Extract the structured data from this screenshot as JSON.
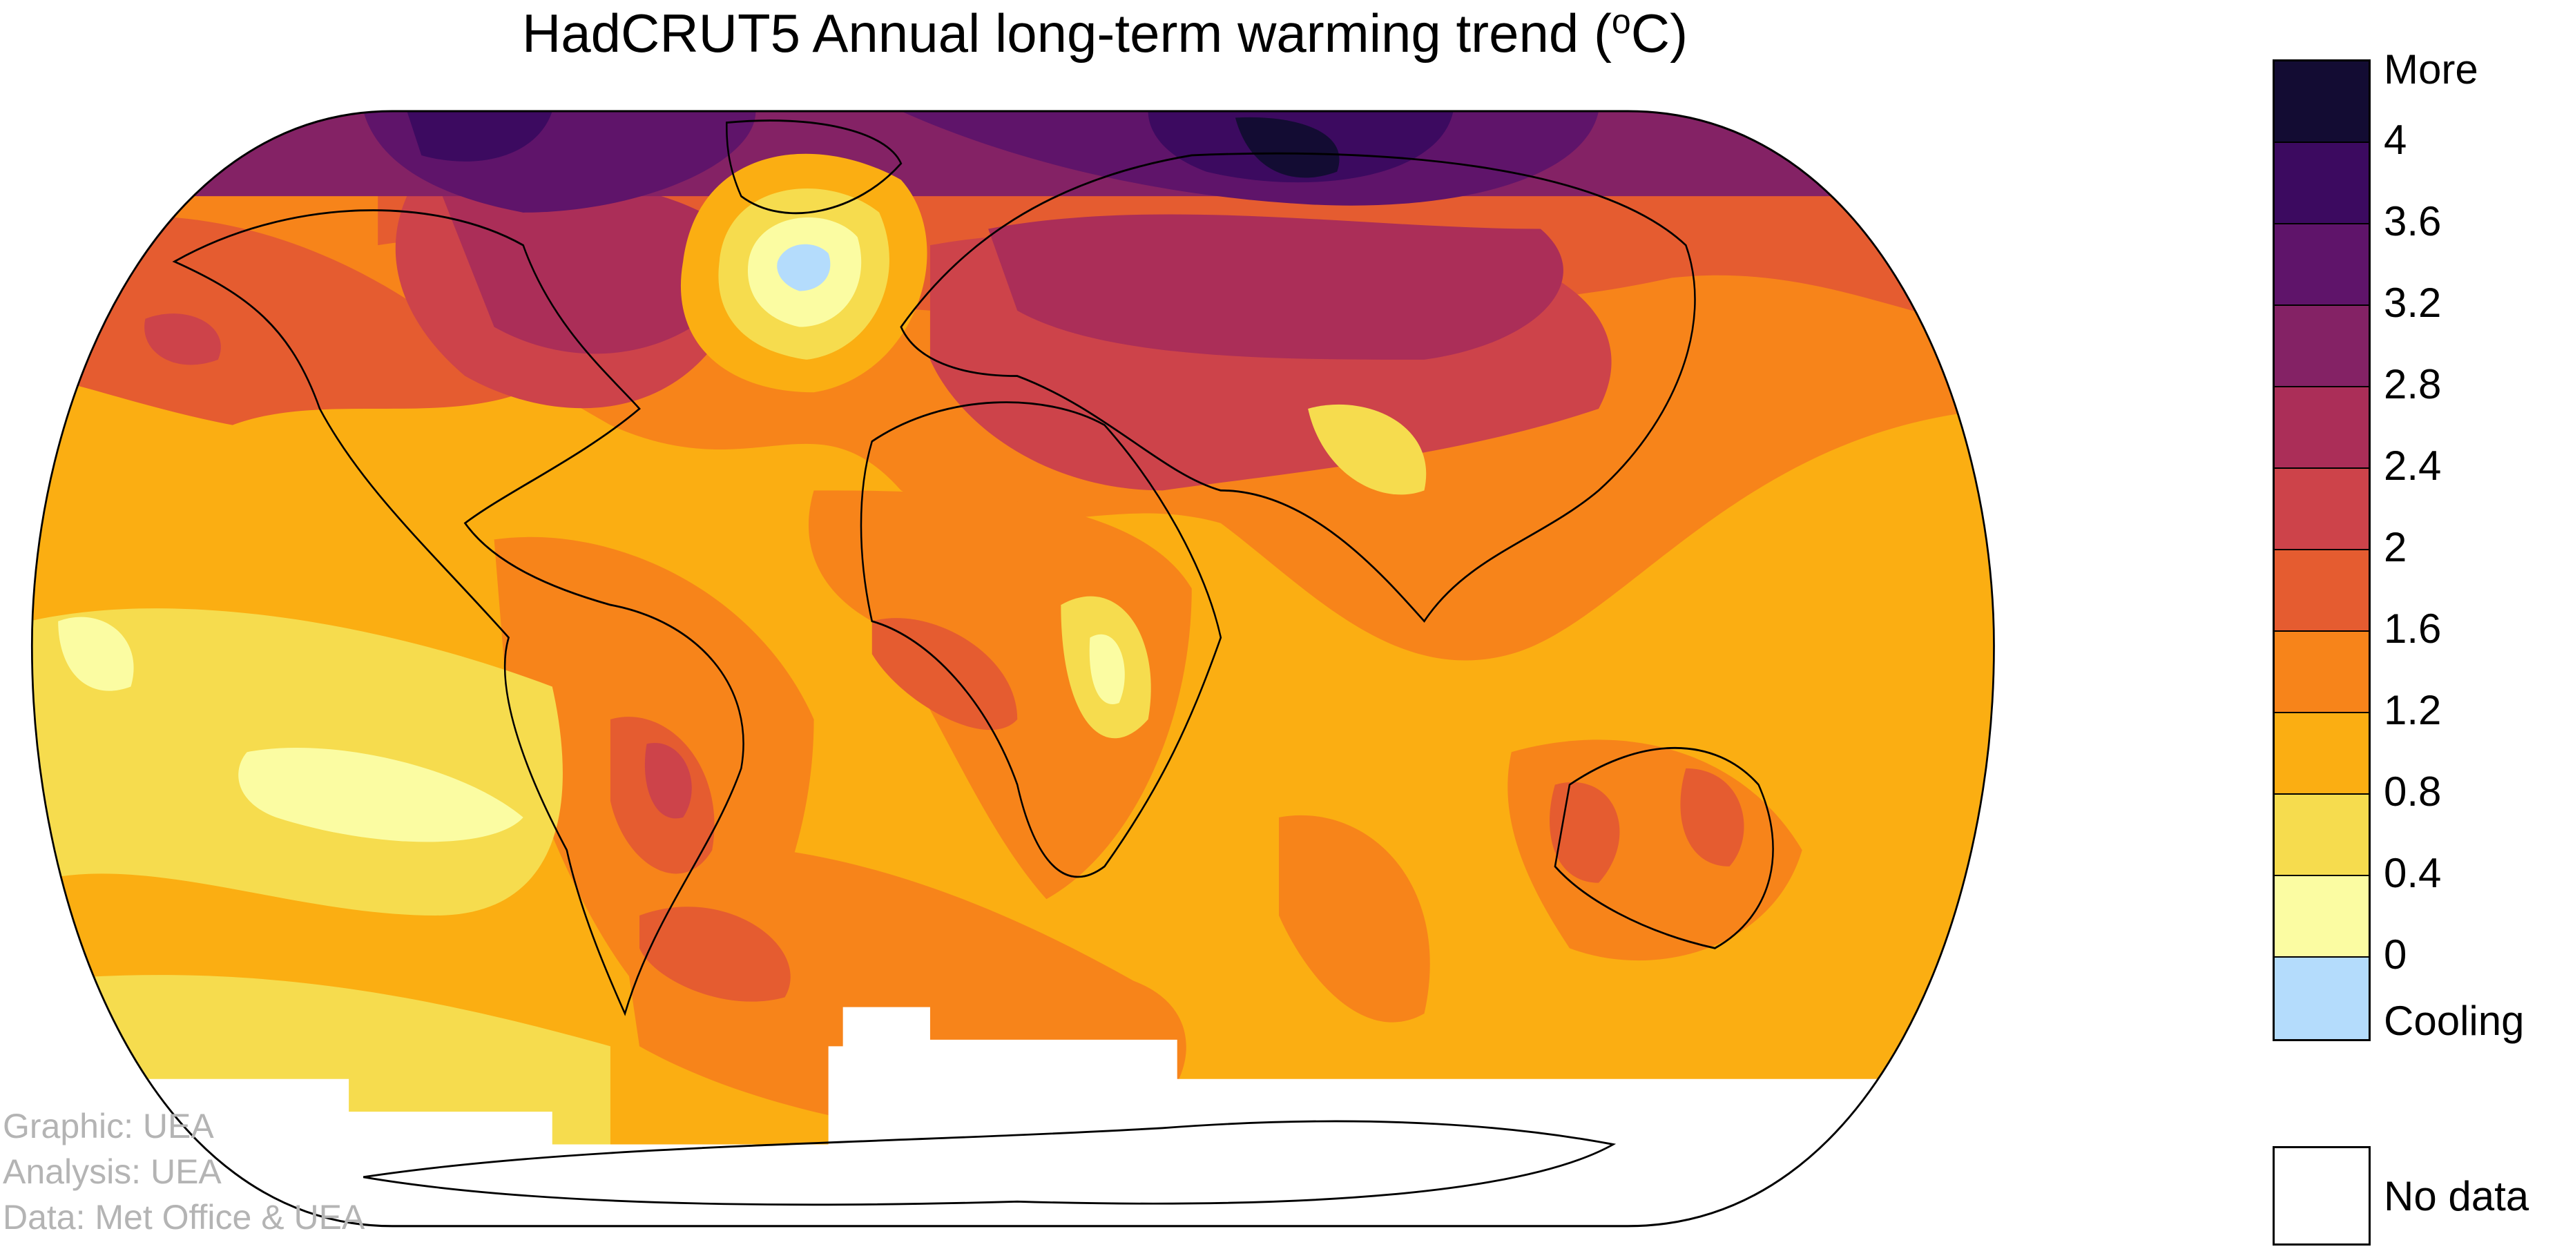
{
  "title": "HadCRUT5 Annual long-term warming trend (",
  "title_unit_sup": "o",
  "title_unit": "C)",
  "credits": [
    "Graphic: UEA",
    "Analysis: UEA",
    "Data: Met Office & UEA"
  ],
  "chart_data": {
    "type": "heatmap",
    "projection": "world map (Robinson-like)",
    "variable": "Annual long-term warming trend",
    "unit": "°C",
    "legend": {
      "placement": "right",
      "top_label": "More",
      "bottom_label": "Cooling",
      "tick_labels": [
        "4",
        "3.6",
        "3.2",
        "2.8",
        "2.4",
        "2",
        "1.6",
        "1.2",
        "0.8",
        "0.4",
        "0"
      ],
      "bands": [
        {
          "range": "> 4",
          "color": "#130c33"
        },
        {
          "range": "3.6–4",
          "color": "#3c0a60"
        },
        {
          "range": "3.2–3.6",
          "color": "#5f146a"
        },
        {
          "range": "2.8–3.2",
          "color": "#842265"
        },
        {
          "range": "2.4–2.8",
          "color": "#ab2e58"
        },
        {
          "range": "2–2.4",
          "color": "#cd434a"
        },
        {
          "range": "1.6–2",
          "color": "#e55c30"
        },
        {
          "range": "1.2–1.6",
          "color": "#f7841a"
        },
        {
          "range": "0.8–1.2",
          "color": "#fbae12"
        },
        {
          "range": "0.4–0.8",
          "color": "#f6dc4e"
        },
        {
          "range": "0–0.4",
          "color": "#fbfca2"
        },
        {
          "range": "< 0",
          "color": "#b4dcfc"
        }
      ],
      "no_data_label": "No data",
      "no_data_color": "#ffffff"
    }
  }
}
